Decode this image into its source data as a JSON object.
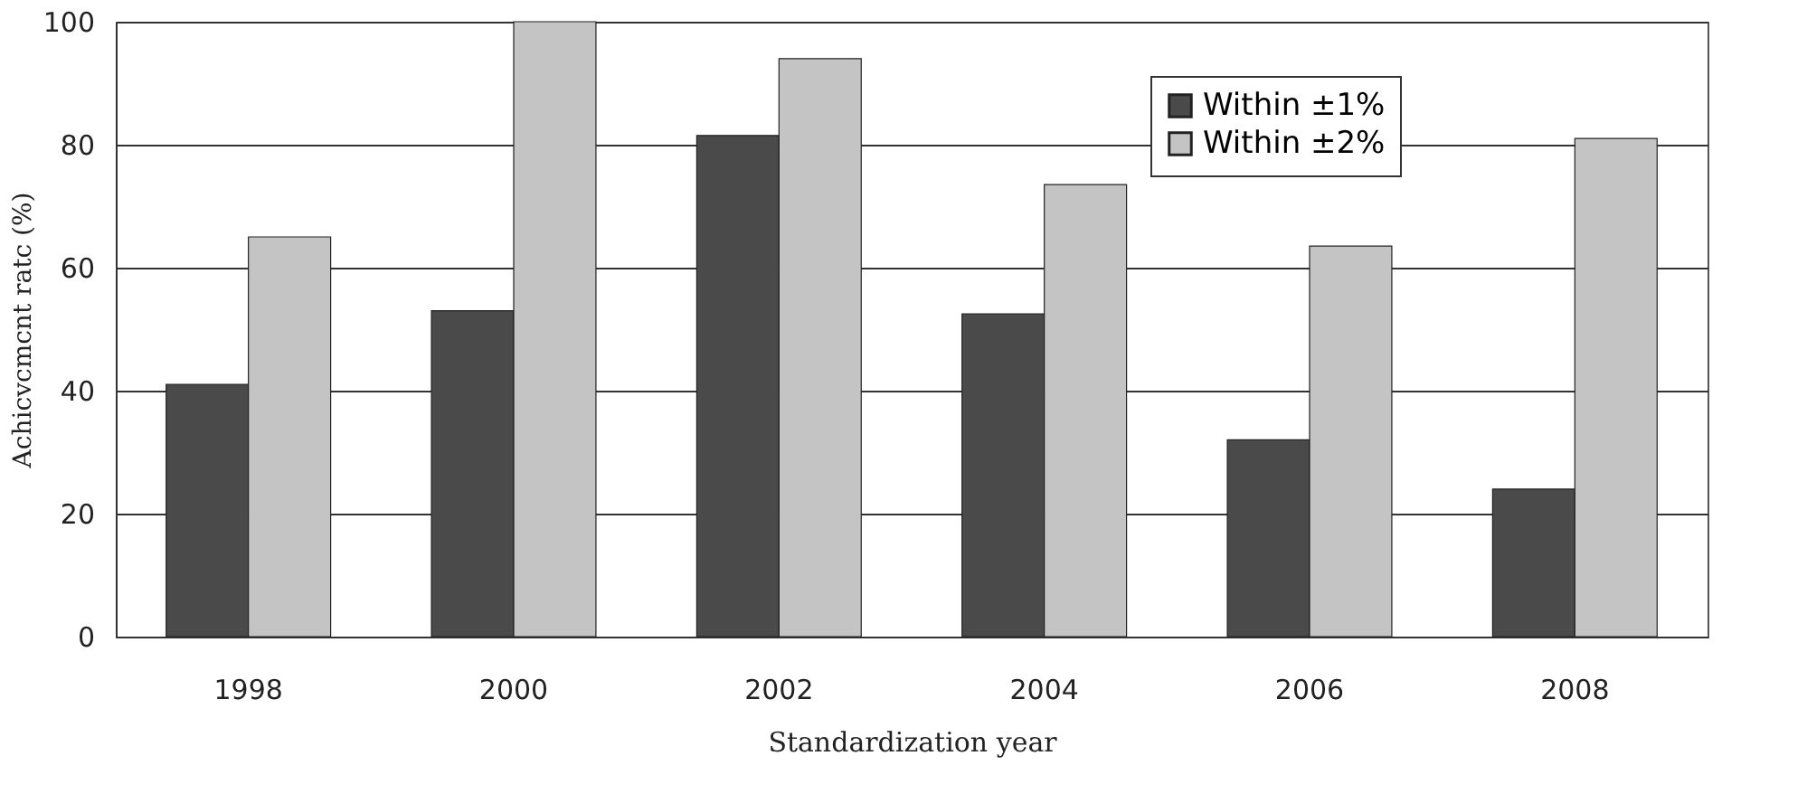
{
  "chart_data": {
    "type": "bar",
    "xlabel": "Standardization year",
    "ylabel": "Achicvcmcnt ratc (%)",
    "categories": [
      "1998",
      "2000",
      "2002",
      "2004",
      "2006",
      "2008"
    ],
    "series": [
      {
        "name": "Within ±1%",
        "color": "#4a4a4a",
        "values": [
          41,
          53,
          81.5,
          52.5,
          32,
          24
        ]
      },
      {
        "name": "Within ±2%",
        "color": "#c4c4c4",
        "values": [
          65,
          100,
          94,
          73.5,
          63.5,
          81
        ]
      }
    ],
    "ylim": [
      0,
      100
    ],
    "yticks": [
      0,
      20,
      40,
      60,
      80,
      100
    ],
    "grid": "y",
    "legend": "top right"
  }
}
